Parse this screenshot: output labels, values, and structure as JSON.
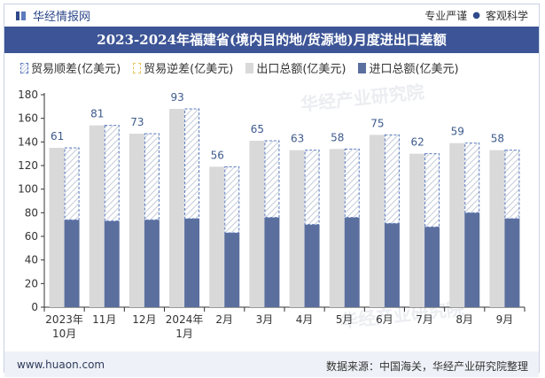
{
  "header": {
    "brand": "华经情报网",
    "tagline": [
      "专业严谨",
      "客观科学"
    ]
  },
  "title": "2023-2024年福建省(境内目的地/货源地)月度进出口差额",
  "legend": [
    "贸易顺差(亿美元)",
    "贸易逆差(亿美元)",
    "出口总额(亿美元)",
    "进口总额(亿美元)"
  ],
  "footer": {
    "website": "www.huaon.com",
    "source": "数据来源：中国海关，华经产业研究院整理"
  },
  "watermark": "华经产业研究院",
  "colors": {
    "title_bg": "#3d5596",
    "export": "#d9d9d9",
    "import": "#5b6f9e",
    "surplus_outline": "#5b7bbd",
    "label": "#3d5a8c"
  },
  "chart_data": {
    "type": "bar",
    "title": "2023-2024年福建省(境内目的地/货源地)月度进出口差额",
    "categories": [
      [
        "2023年",
        "10月"
      ],
      [
        "11月"
      ],
      [
        "12月"
      ],
      [
        "2024年",
        "1月"
      ],
      [
        "2月"
      ],
      [
        "3月"
      ],
      [
        "4月"
      ],
      [
        "5月"
      ],
      [
        "6月"
      ],
      [
        "7月"
      ],
      [
        "8月"
      ],
      [
        "9月"
      ]
    ],
    "ylim": [
      0,
      180
    ],
    "yticks": [
      0,
      20,
      40,
      60,
      80,
      100,
      120,
      140,
      160,
      180
    ],
    "series": [
      {
        "name": "出口总额(亿美元)",
        "values": [
          135,
          154,
          147,
          168,
          119,
          141,
          133,
          134,
          146,
          130,
          139,
          133
        ]
      },
      {
        "name": "进口总额(亿美元)",
        "values": [
          74,
          73,
          74,
          75,
          63,
          76,
          70,
          76,
          71,
          68,
          80,
          75
        ]
      },
      {
        "name": "贸易顺差(亿美元)",
        "values": [
          61,
          81,
          73,
          93,
          56,
          65,
          63,
          58,
          75,
          62,
          59,
          58
        ]
      }
    ]
  }
}
